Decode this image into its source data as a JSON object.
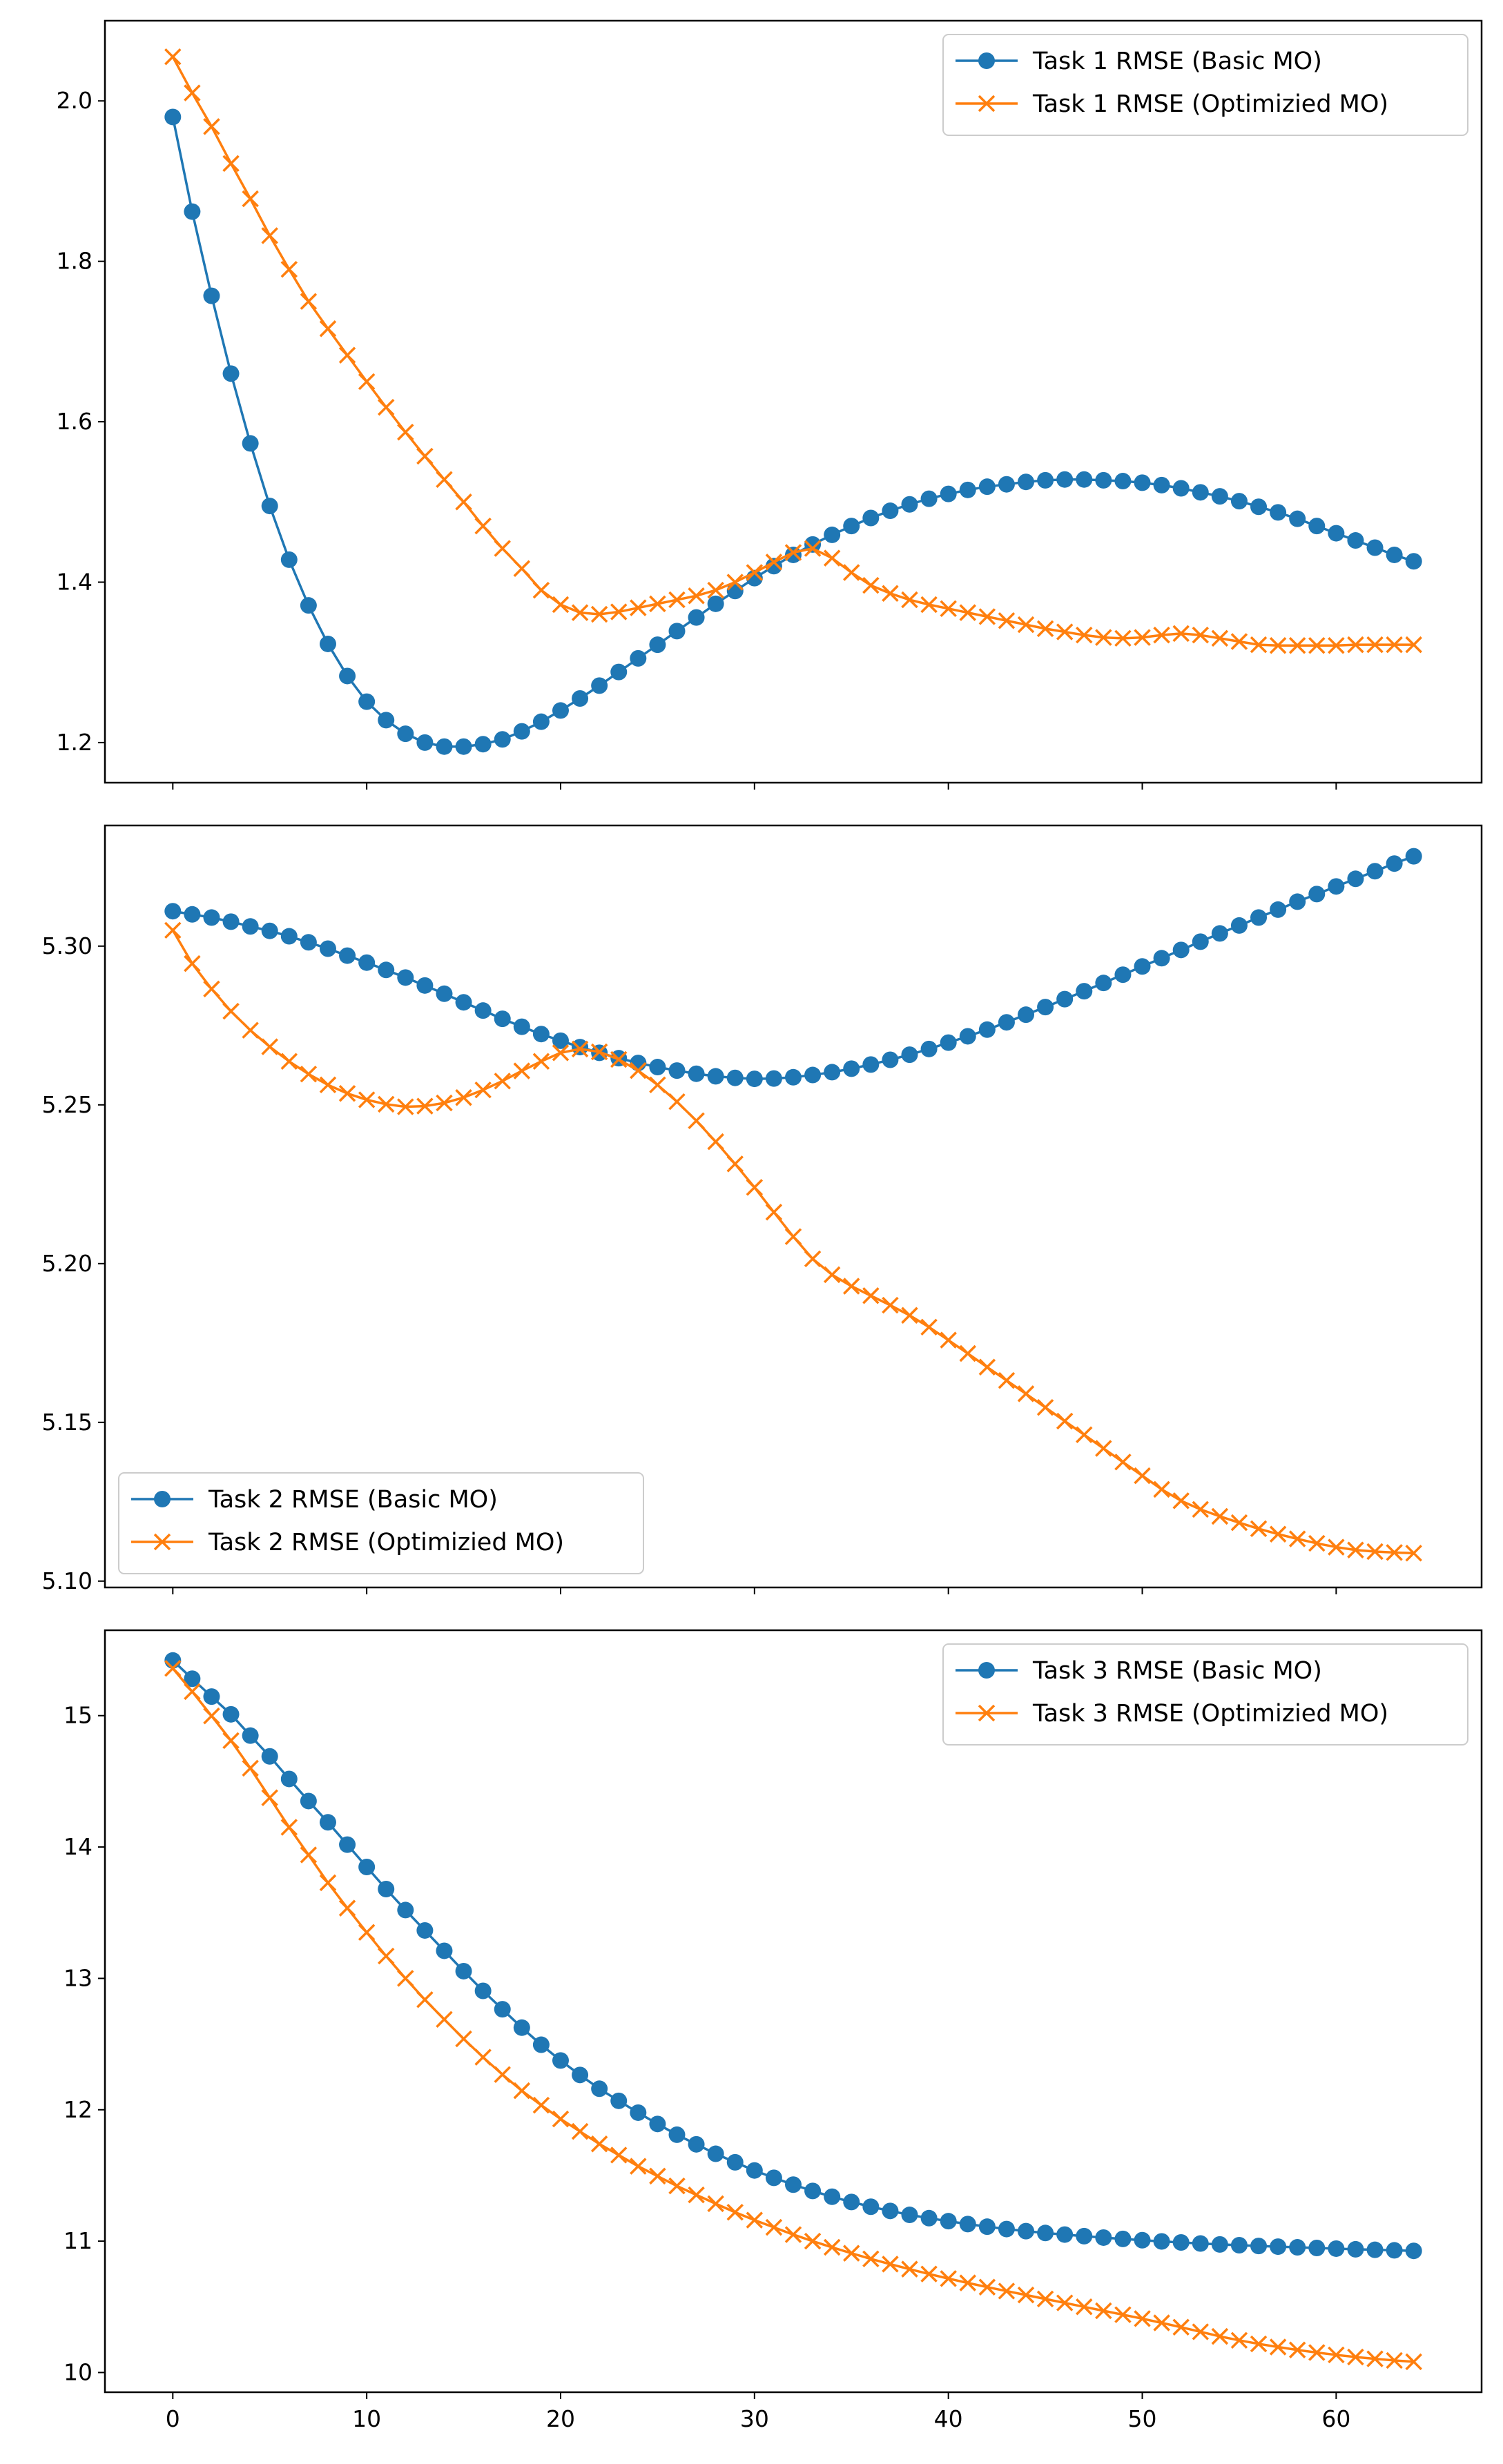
{
  "colors": {
    "basic": "#1f77b4",
    "optimized": "#ff7f0e"
  },
  "chart_data": [
    {
      "type": "line",
      "title": "",
      "xlabel": "",
      "ylabel": "",
      "xlim": [
        -3.5,
        67.5
      ],
      "ylim": [
        1.15,
        2.1
      ],
      "yticks": [
        1.2,
        1.4,
        1.6,
        1.8,
        2.0
      ],
      "ytick_labels": [
        "1.2",
        "1.4",
        "1.6",
        "1.8",
        "2.0"
      ],
      "xticks": [
        0,
        10,
        20,
        30,
        40,
        50,
        60
      ],
      "xtick_labels": [
        "",
        "",
        "",
        "",
        "",
        "",
        ""
      ],
      "legend_position": "upper-right",
      "series": [
        {
          "name": "Task 1 RMSE (Basic MO)",
          "marker": "o",
          "values": [
            1.98,
            1.862,
            1.757,
            1.66,
            1.573,
            1.495,
            1.428,
            1.371,
            1.323,
            1.283,
            1.251,
            1.228,
            1.211,
            1.2,
            1.195,
            1.195,
            1.198,
            1.204,
            1.214,
            1.226,
            1.24,
            1.255,
            1.271,
            1.288,
            1.305,
            1.322,
            1.339,
            1.356,
            1.373,
            1.389,
            1.405,
            1.42,
            1.434,
            1.447,
            1.459,
            1.47,
            1.48,
            1.489,
            1.497,
            1.504,
            1.51,
            1.515,
            1.519,
            1.522,
            1.525,
            1.527,
            1.528,
            1.528,
            1.527,
            1.526,
            1.524,
            1.521,
            1.517,
            1.512,
            1.507,
            1.501,
            1.494,
            1.487,
            1.479,
            1.47,
            1.461,
            1.452,
            1.443,
            1.434,
            1.426
          ]
        },
        {
          "name": "Task 1 RMSE (Optimizied MO)",
          "marker": "x",
          "values": [
            2.055,
            2.01,
            1.968,
            1.922,
            1.878,
            1.832,
            1.79,
            1.75,
            1.716,
            1.683,
            1.65,
            1.618,
            1.587,
            1.557,
            1.528,
            1.5,
            1.47,
            1.442,
            1.417,
            1.39,
            1.372,
            1.362,
            1.36,
            1.363,
            1.368,
            1.373,
            1.378,
            1.383,
            1.39,
            1.4,
            1.412,
            1.425,
            1.437,
            1.442,
            1.43,
            1.412,
            1.396,
            1.386,
            1.378,
            1.372,
            1.367,
            1.362,
            1.357,
            1.352,
            1.347,
            1.342,
            1.338,
            1.334,
            1.331,
            1.33,
            1.331,
            1.334,
            1.336,
            1.334,
            1.33,
            1.326,
            1.322,
            1.321,
            1.321,
            1.321,
            1.321,
            1.322,
            1.322,
            1.322,
            1.322
          ]
        }
      ]
    },
    {
      "type": "line",
      "title": "",
      "xlabel": "",
      "ylabel": "",
      "xlim": [
        -3.5,
        67.5
      ],
      "ylim": [
        5.098,
        5.338
      ],
      "yticks": [
        5.1,
        5.15,
        5.2,
        5.25,
        5.3
      ],
      "ytick_labels": [
        "5.10",
        "5.15",
        "5.20",
        "5.25",
        "5.30"
      ],
      "xticks": [
        0,
        10,
        20,
        30,
        40,
        50,
        60
      ],
      "xtick_labels": [
        "",
        "",
        "",
        "",
        "",
        "",
        ""
      ],
      "legend_position": "lower-left",
      "series": [
        {
          "name": "Task 2 RMSE (Basic MO)",
          "marker": "o",
          "values": [
            5.311,
            5.31,
            5.309,
            5.3077,
            5.3062,
            5.3048,
            5.3031,
            5.3012,
            5.2992,
            5.297,
            5.2948,
            5.2925,
            5.2901,
            5.2876,
            5.285,
            5.2823,
            5.2797,
            5.2771,
            5.2746,
            5.2723,
            5.2702,
            5.2682,
            5.2664,
            5.2647,
            5.2632,
            5.2619,
            5.2608,
            5.2598,
            5.259,
            5.2585,
            5.2582,
            5.2583,
            5.2587,
            5.2594,
            5.2603,
            5.2614,
            5.2627,
            5.2642,
            5.2658,
            5.2676,
            5.2696,
            5.2716,
            5.2737,
            5.276,
            5.2784,
            5.2808,
            5.2833,
            5.2858,
            5.2884,
            5.291,
            5.2936,
            5.2962,
            5.2988,
            5.3014,
            5.304,
            5.3065,
            5.309,
            5.3115,
            5.314,
            5.3164,
            5.3188,
            5.3212,
            5.3236,
            5.326,
            5.3283
          ]
        },
        {
          "name": "Task 2 RMSE (Optimizied MO)",
          "marker": "x",
          "values": [
            5.305,
            5.2945,
            5.2865,
            5.2795,
            5.2735,
            5.2683,
            5.2637,
            5.2597,
            5.2563,
            5.2536,
            5.2516,
            5.2502,
            5.2494,
            5.2496,
            5.2506,
            5.2523,
            5.2547,
            5.2575,
            5.2607,
            5.2637,
            5.2664,
            5.2676,
            5.2667,
            5.2643,
            5.2608,
            5.2563,
            5.251,
            5.245,
            5.2384,
            5.2314,
            5.224,
            5.2162,
            5.2085,
            5.2015,
            5.1965,
            5.1929,
            5.1899,
            5.1869,
            5.1837,
            5.18,
            5.1759,
            5.1717,
            5.1674,
            5.1632,
            5.159,
            5.1547,
            5.1504,
            5.1461,
            5.1418,
            5.1375,
            5.1332,
            5.1289,
            5.1253,
            5.1226,
            5.1204,
            5.1184,
            5.1165,
            5.1148,
            5.1133,
            5.1119,
            5.1107,
            5.1098,
            5.1093,
            5.109,
            5.1088
          ]
        }
      ]
    },
    {
      "type": "line",
      "title": "",
      "xlabel": "",
      "ylabel": "",
      "xlim": [
        -3.5,
        67.5
      ],
      "ylim": [
        9.85,
        15.65
      ],
      "yticks": [
        10,
        11,
        12,
        13,
        14,
        15
      ],
      "ytick_labels": [
        "10",
        "11",
        "12",
        "13",
        "14",
        "15"
      ],
      "xticks": [
        0,
        10,
        20,
        30,
        40,
        50,
        60
      ],
      "xtick_labels": [
        "0",
        "10",
        "20",
        "30",
        "40",
        "50",
        "60"
      ],
      "legend_position": "upper-right",
      "series": [
        {
          "name": "Task 3 RMSE (Basic MO)",
          "marker": "o",
          "values": [
            15.42,
            15.281,
            15.145,
            15.01,
            14.848,
            14.69,
            14.518,
            14.35,
            14.188,
            14.018,
            13.848,
            13.68,
            13.52,
            13.365,
            13.21,
            13.055,
            12.905,
            12.765,
            12.625,
            12.495,
            12.375,
            12.265,
            12.16,
            12.068,
            11.978,
            11.892,
            11.81,
            11.737,
            11.665,
            11.6,
            11.538,
            11.482,
            11.43,
            11.382,
            11.338,
            11.298,
            11.262,
            11.23,
            11.2,
            11.175,
            11.152,
            11.13,
            11.11,
            11.092,
            11.076,
            11.062,
            11.05,
            11.038,
            11.027,
            11.017,
            11.007,
            10.998,
            10.99,
            10.982,
            10.975,
            10.969,
            10.963,
            10.958,
            10.953,
            10.948,
            10.943,
            10.938,
            10.934,
            10.93,
            10.926
          ]
        },
        {
          "name": "Task 3 RMSE (Optimizied MO)",
          "marker": "x",
          "values": [
            15.36,
            15.183,
            14.998,
            14.81,
            14.6,
            14.375,
            14.15,
            13.94,
            13.728,
            13.535,
            13.35,
            13.17,
            13.0,
            12.838,
            12.688,
            12.54,
            12.4,
            12.268,
            12.145,
            12.035,
            11.93,
            11.835,
            11.74,
            11.655,
            11.57,
            11.495,
            11.42,
            11.352,
            11.285,
            11.22,
            11.16,
            11.105,
            11.05,
            11.0,
            10.953,
            10.908,
            10.865,
            10.825,
            10.787,
            10.75,
            10.715,
            10.682,
            10.65,
            10.62,
            10.59,
            10.56,
            10.53,
            10.5,
            10.47,
            10.44,
            10.41,
            10.378,
            10.345,
            10.31,
            10.275,
            10.245,
            10.218,
            10.194,
            10.172,
            10.152,
            10.134,
            10.118,
            10.104,
            10.092,
            10.082
          ]
        }
      ]
    }
  ]
}
